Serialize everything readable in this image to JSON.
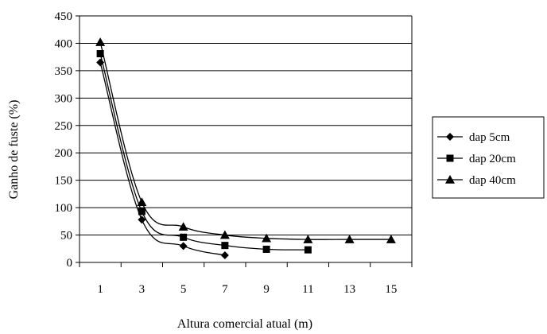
{
  "chart_data": {
    "type": "line",
    "xlabel": "Altura comercial atual (m)",
    "ylabel": "Ganho de fuste (%)",
    "x_ticks": [
      "1",
      "3",
      "5",
      "7",
      "9",
      "11",
      "13",
      "15"
    ],
    "y_ticks": [
      "0",
      "50",
      "100",
      "150",
      "200",
      "250",
      "300",
      "350",
      "400",
      "450"
    ],
    "ylim": [
      0,
      450
    ],
    "x_categories": [
      1,
      3,
      5,
      7,
      9,
      11,
      13,
      15
    ],
    "grid": "horizontal",
    "legend_position": "right",
    "series": [
      {
        "name": "dap 5cm",
        "marker": "diamond",
        "x": [
          1,
          3,
          5,
          7
        ],
        "values": [
          365,
          78,
          30,
          13
        ]
      },
      {
        "name": "dap 20cm",
        "marker": "square",
        "x": [
          1,
          3,
          5,
          7,
          9,
          11
        ],
        "values": [
          381,
          93,
          46,
          31,
          24,
          23
        ]
      },
      {
        "name": "dap 40cm",
        "marker": "triangle",
        "x": [
          1,
          3,
          5,
          7,
          9,
          11,
          13,
          15
        ],
        "values": [
          402,
          110,
          65,
          50,
          44,
          42,
          42,
          42
        ]
      }
    ],
    "colors": {
      "line": "#000000",
      "grid": "#000000",
      "background": "#ffffff"
    }
  }
}
